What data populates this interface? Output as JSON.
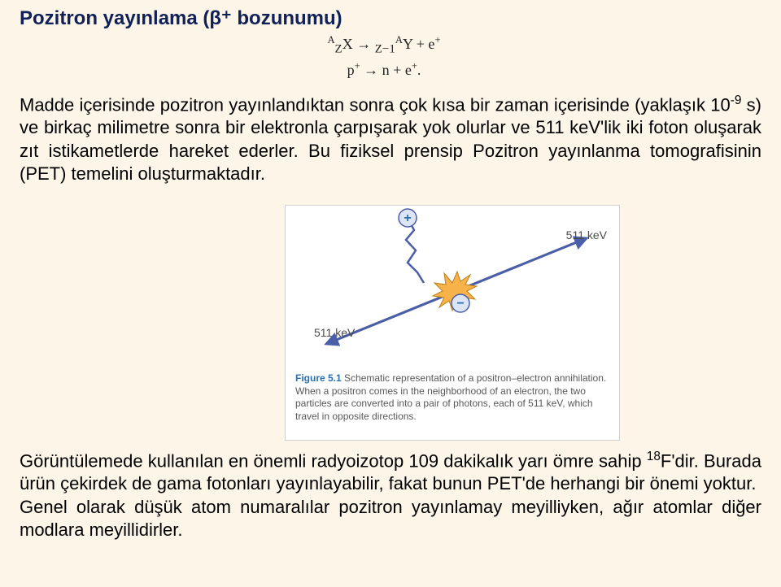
{
  "title": "Pozitron yayınlama (β⁺ bozunumu)",
  "equation": {
    "line1_html": "<span><sup>A</sup><sub>Z</sub>X → <sub>Z−1</sub><sup>A</sup>Y + e<sup>+</sup></span>",
    "line2_html": "p<sup>+</sup> → n + e<sup>+</sup>."
  },
  "paragraph1_html": "Madde içerisinde pozitron yayınlandıktan sonra çok kısa bir zaman içerisinde (yaklaşık 10<sup>-9</sup> s) ve birkaç milimetre sonra bir elektronla çarpışarak yok olurlar ve 511 keV'lik iki foton oluşarak zıt istikametlerde hareket ederler. Bu fiziksel prensip Pozitron yayınlanma tomografisinin (PET) temelini oluşturmaktadır.",
  "paragraph2_html": "Görüntülemede kullanılan en önemli radyoizotop 109 dakikalık yarı ömre sahip <sup>18</sup>F'dir. Burada ürün çekirdek de gama fotonları yayınlayabilir, fakat bunun PET'de herhangi bir önemi yoktur.<br>Genel olarak düşük atom numaralılar pozitron yayınlamay meyilliyken, ağır atomlar diğer modlara meyillidirler.",
  "figure": {
    "label_top": "511 keV",
    "label_bottom": "511 keV",
    "caption_bold": "Figure 5.1",
    "caption_rest": " Schematic representation of a positron–electron annihilation. When a positron comes in the neighborhood of an electron, the two particles are converted into a pair of photons, each of 511 keV, which travel in opposite directions.",
    "colors": {
      "photon_line": "#4b5ea8",
      "positron_fill": "#dbe5f5",
      "positron_stroke": "#4b5ea8",
      "electron_fill": "#dbe5f5",
      "electron_stroke": "#4b5ea8",
      "burst_fill": "#f7b24a",
      "burst_stroke": "#c07d18",
      "zigzag": "#4b5ea8",
      "arrow": "#4b5ea8"
    }
  }
}
